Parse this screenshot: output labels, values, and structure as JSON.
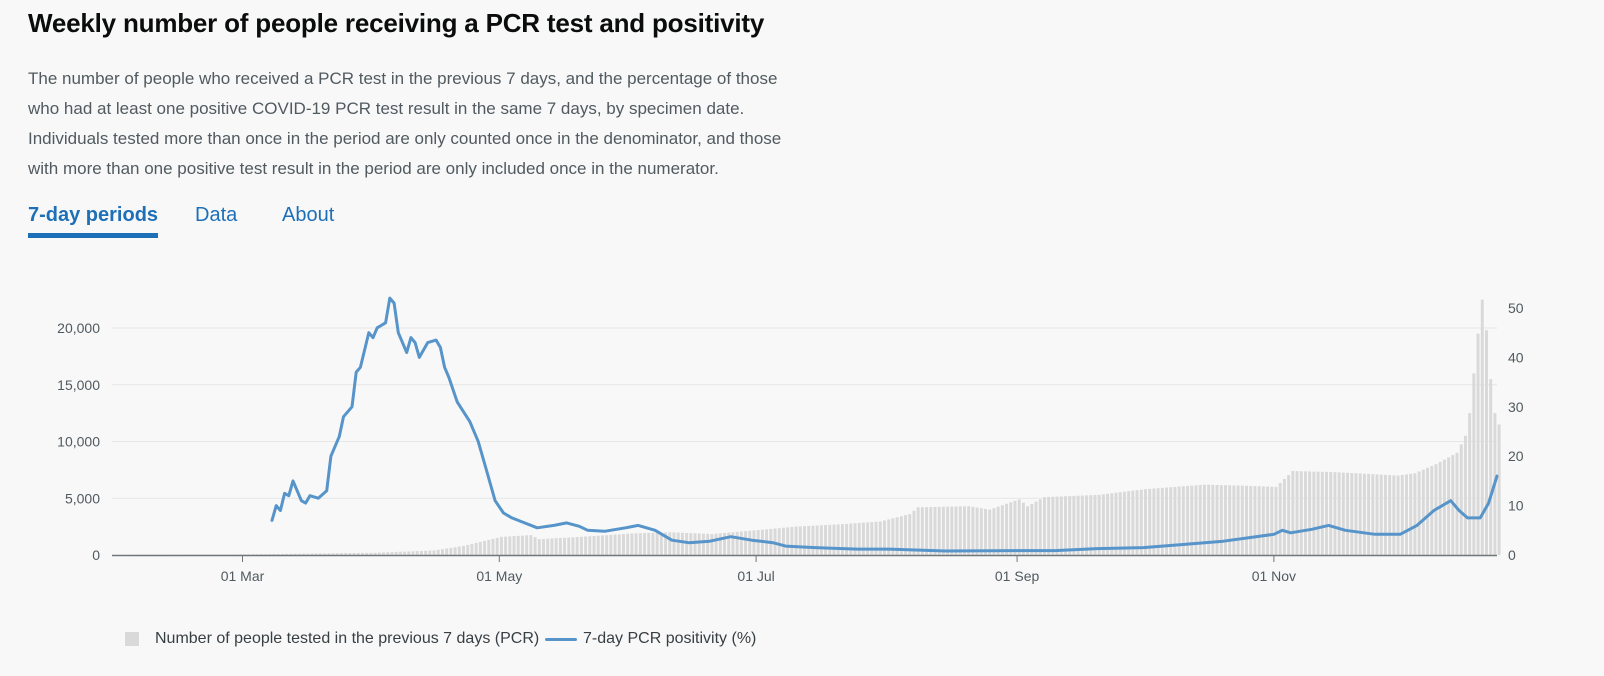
{
  "page": {
    "title": "Weekly number of people receiving a PCR test and positivity",
    "description": [
      "The number of people who received a PCR test in the previous 7 days, and the percentage of those",
      "who had at least one positive COVID-19 PCR test result in the same 7 days, by specimen date.",
      "Individuals tested more than once in the period are only counted once in the denominator, and those",
      "with more than one positive test result in the period are only included once in the numerator."
    ]
  },
  "tabs": [
    {
      "label": "7-day periods",
      "active": true
    },
    {
      "label": "Data",
      "active": false
    },
    {
      "label": "About",
      "active": false
    }
  ],
  "legend": {
    "bars_label": "Number of people tested in the previous 7 days (PCR)",
    "line_label": "7-day PCR positivity (%)"
  },
  "colors": {
    "bar": "#d9d9d9",
    "line": "#5694ca",
    "tab_accent": "#1d70b8",
    "grid": "#e6e6e6",
    "axis": "#6f777b"
  },
  "chart_data": {
    "type": "bar",
    "x_start": "2020-01-30",
    "x_end": "2020-12-24",
    "left_axis": {
      "ticks": [
        0,
        5000,
        10000,
        15000,
        20000
      ],
      "tick_labels": [
        "0",
        "5,000",
        "10,000",
        "15,000",
        "20,000"
      ],
      "max": 20000
    },
    "right_axis": {
      "ticks": [
        0,
        10,
        20,
        30,
        40,
        50
      ],
      "tick_labels": [
        "0",
        "10",
        "20",
        "30",
        "40",
        "50"
      ],
      "max": 50
    },
    "x_ticks": [
      {
        "date": "2020-03-01",
        "label": "01 Mar"
      },
      {
        "date": "2020-05-01",
        "label": "01 May"
      },
      {
        "date": "2020-07-01",
        "label": "01 Jul"
      },
      {
        "date": "2020-09-01",
        "label": "01 Sep"
      },
      {
        "date": "2020-11-01",
        "label": "01 Nov"
      }
    ],
    "grid": true,
    "legend_position": "bottom-left",
    "series": [
      {
        "name": "Number of people tested in the previous 7 days (PCR)",
        "kind": "bar",
        "axis": "left",
        "points": [
          [
            "2020-01-30",
            0
          ],
          [
            "2020-03-01",
            50
          ],
          [
            "2020-04-01",
            200
          ],
          [
            "2020-04-15",
            400
          ],
          [
            "2020-04-22",
            800
          ],
          [
            "2020-05-01",
            1600
          ],
          [
            "2020-05-08",
            1750
          ],
          [
            "2020-05-10",
            1400
          ],
          [
            "2020-05-20",
            1600
          ],
          [
            "2020-06-01",
            1900
          ],
          [
            "2020-06-10",
            2000
          ],
          [
            "2020-06-20",
            1850
          ],
          [
            "2020-07-01",
            2200
          ],
          [
            "2020-07-10",
            2500
          ],
          [
            "2020-07-20",
            2700
          ],
          [
            "2020-07-30",
            2950
          ],
          [
            "2020-08-06",
            3600
          ],
          [
            "2020-08-08",
            4200
          ],
          [
            "2020-08-20",
            4300
          ],
          [
            "2020-08-25",
            4000
          ],
          [
            "2020-09-01",
            4900
          ],
          [
            "2020-09-03",
            4300
          ],
          [
            "2020-09-07",
            5100
          ],
          [
            "2020-09-20",
            5300
          ],
          [
            "2020-10-01",
            5800
          ],
          [
            "2020-10-15",
            6200
          ],
          [
            "2020-10-25",
            6100
          ],
          [
            "2020-11-01",
            6000
          ],
          [
            "2020-11-05",
            7400
          ],
          [
            "2020-11-15",
            7300
          ],
          [
            "2020-11-30",
            7000
          ],
          [
            "2020-12-04",
            7200
          ],
          [
            "2020-12-09",
            8000
          ],
          [
            "2020-12-14",
            9000
          ],
          [
            "2020-12-16",
            10500
          ],
          [
            "2020-12-17",
            12500
          ],
          [
            "2020-12-18",
            16000
          ],
          [
            "2020-12-19",
            19500
          ],
          [
            "2020-12-20",
            22500
          ],
          [
            "2020-12-21",
            19800
          ],
          [
            "2020-12-22",
            15500
          ],
          [
            "2020-12-23",
            12500
          ],
          [
            "2020-12-24",
            11500
          ]
        ]
      },
      {
        "name": "7-day PCR positivity (%)",
        "kind": "line",
        "axis": "right",
        "points": [
          [
            "2020-03-08",
            7
          ],
          [
            "2020-03-09",
            10
          ],
          [
            "2020-03-10",
            9
          ],
          [
            "2020-03-11",
            12.5
          ],
          [
            "2020-03-12",
            12
          ],
          [
            "2020-03-13",
            15
          ],
          [
            "2020-03-14",
            13
          ],
          [
            "2020-03-15",
            11
          ],
          [
            "2020-03-16",
            10.5
          ],
          [
            "2020-03-17",
            12
          ],
          [
            "2020-03-19",
            11.5
          ],
          [
            "2020-03-21",
            13
          ],
          [
            "2020-03-22",
            20
          ],
          [
            "2020-03-24",
            24
          ],
          [
            "2020-03-25",
            28
          ],
          [
            "2020-03-27",
            30
          ],
          [
            "2020-03-28",
            37
          ],
          [
            "2020-03-29",
            38
          ],
          [
            "2020-03-31",
            45
          ],
          [
            "2020-04-01",
            44
          ],
          [
            "2020-04-02",
            46
          ],
          [
            "2020-04-04",
            47
          ],
          [
            "2020-04-05",
            52
          ],
          [
            "2020-04-06",
            51
          ],
          [
            "2020-04-07",
            45
          ],
          [
            "2020-04-09",
            41
          ],
          [
            "2020-04-10",
            44
          ],
          [
            "2020-04-11",
            43
          ],
          [
            "2020-04-12",
            40
          ],
          [
            "2020-04-14",
            43
          ],
          [
            "2020-04-16",
            43.5
          ],
          [
            "2020-04-17",
            42
          ],
          [
            "2020-04-18",
            38
          ],
          [
            "2020-04-19",
            36
          ],
          [
            "2020-04-21",
            31
          ],
          [
            "2020-04-24",
            27
          ],
          [
            "2020-04-26",
            23
          ],
          [
            "2020-04-28",
            17
          ],
          [
            "2020-04-30",
            11
          ],
          [
            "2020-05-02",
            8.5
          ],
          [
            "2020-05-04",
            7.5
          ],
          [
            "2020-05-07",
            6.5
          ],
          [
            "2020-05-10",
            5.5
          ],
          [
            "2020-05-14",
            6
          ],
          [
            "2020-05-17",
            6.5
          ],
          [
            "2020-05-20",
            5.8
          ],
          [
            "2020-05-22",
            5
          ],
          [
            "2020-05-26",
            4.8
          ],
          [
            "2020-05-31",
            5.5
          ],
          [
            "2020-06-03",
            6
          ],
          [
            "2020-06-07",
            5
          ],
          [
            "2020-06-11",
            3
          ],
          [
            "2020-06-15",
            2.5
          ],
          [
            "2020-06-20",
            2.8
          ],
          [
            "2020-06-25",
            3.7
          ],
          [
            "2020-06-30",
            3
          ],
          [
            "2020-07-05",
            2.5
          ],
          [
            "2020-07-08",
            1.8
          ],
          [
            "2020-07-15",
            1.5
          ],
          [
            "2020-07-25",
            1.2
          ],
          [
            "2020-08-01",
            1.2
          ],
          [
            "2020-08-15",
            0.8
          ],
          [
            "2020-09-01",
            0.9
          ],
          [
            "2020-09-10",
            0.9
          ],
          [
            "2020-09-20",
            1.3
          ],
          [
            "2020-10-01",
            1.5
          ],
          [
            "2020-10-10",
            2.1
          ],
          [
            "2020-10-20",
            2.8
          ],
          [
            "2020-11-01",
            4.2
          ],
          [
            "2020-11-03",
            5
          ],
          [
            "2020-11-05",
            4.5
          ],
          [
            "2020-11-10",
            5.2
          ],
          [
            "2020-11-14",
            6
          ],
          [
            "2020-11-18",
            5
          ],
          [
            "2020-11-25",
            4.2
          ],
          [
            "2020-12-01",
            4.2
          ],
          [
            "2020-12-05",
            6
          ],
          [
            "2020-12-09",
            9
          ],
          [
            "2020-12-13",
            11
          ],
          [
            "2020-12-15",
            9
          ],
          [
            "2020-12-17",
            7.5
          ],
          [
            "2020-12-20",
            7.5
          ],
          [
            "2020-12-22",
            10.5
          ],
          [
            "2020-12-24",
            16
          ]
        ]
      }
    ]
  }
}
